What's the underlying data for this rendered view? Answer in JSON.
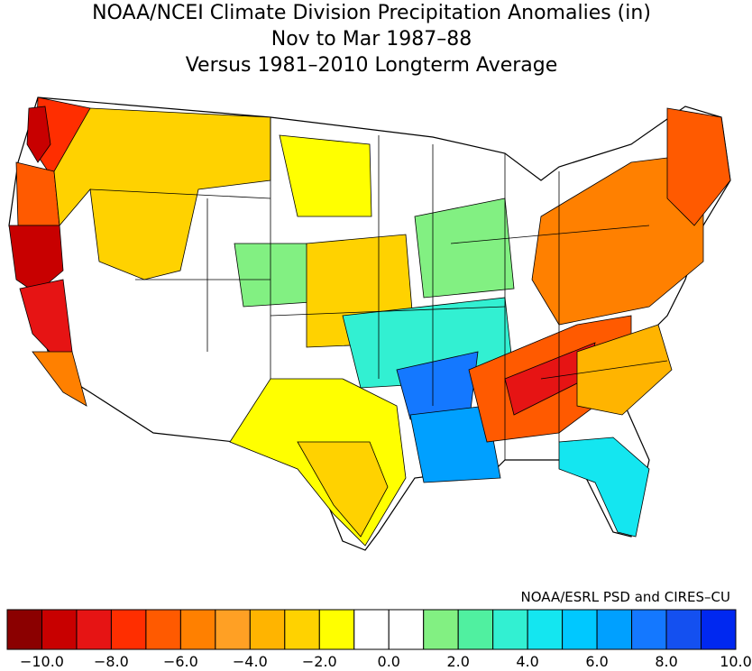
{
  "title": {
    "line1": "NOAA/NCEI Climate Division Precipitation Anomalies (in)",
    "line2": "Nov to Mar 1987–88",
    "line3": "Versus 1981–2010 Longterm Average"
  },
  "credit": "NOAA/ESRL PSD and CIRES–CU",
  "legend": {
    "colors": [
      "#8b0000",
      "#c80000",
      "#e61414",
      "#ff2e00",
      "#ff5a00",
      "#ff8000",
      "#ffa024",
      "#ffb400",
      "#ffd200",
      "#ffff00",
      "#ffffff",
      "#ffffff",
      "#82f082",
      "#50f0a0",
      "#32f0d2",
      "#14e6f0",
      "#00c8ff",
      "#00a0ff",
      "#1478ff",
      "#1450f0",
      "#0028f0"
    ],
    "tick_labels": [
      "−10.0",
      "−8.0",
      "−6.0",
      "−4.0",
      "−2.0",
      "0.0",
      "2.0",
      "4.0",
      "6.0",
      "8.0",
      "10.0"
    ]
  },
  "regions": {
    "pacific_northwest_coast": "#c80000",
    "washington_west": "#ff2e00",
    "oregon_coast": "#ff5a00",
    "northern_california": "#c80000",
    "central_california": "#e61414",
    "southern_california": "#ff8000",
    "idaho_montana": "#ffd200",
    "great_basin": "#ffffff",
    "southwest": "#ffffff",
    "northern_plains": "#ffff00",
    "central_plains": "#ffd200",
    "colorado_wyoming": "#82f082",
    "texas": "#ffff00",
    "texas_gulf": "#ffd200",
    "mid_mississippi": "#32f0d2",
    "lower_mississippi": "#1478ff",
    "louisiana": "#00a0ff",
    "florida": "#14e6f0",
    "southeast_appalachia": "#ff5a00",
    "tennessee_valley": "#e61414",
    "carolinas": "#ffb400",
    "northeast": "#ff8000",
    "new_england": "#ff5a00",
    "great_lakes": "#ffffff",
    "upper_midwest": "#82f082"
  }
}
